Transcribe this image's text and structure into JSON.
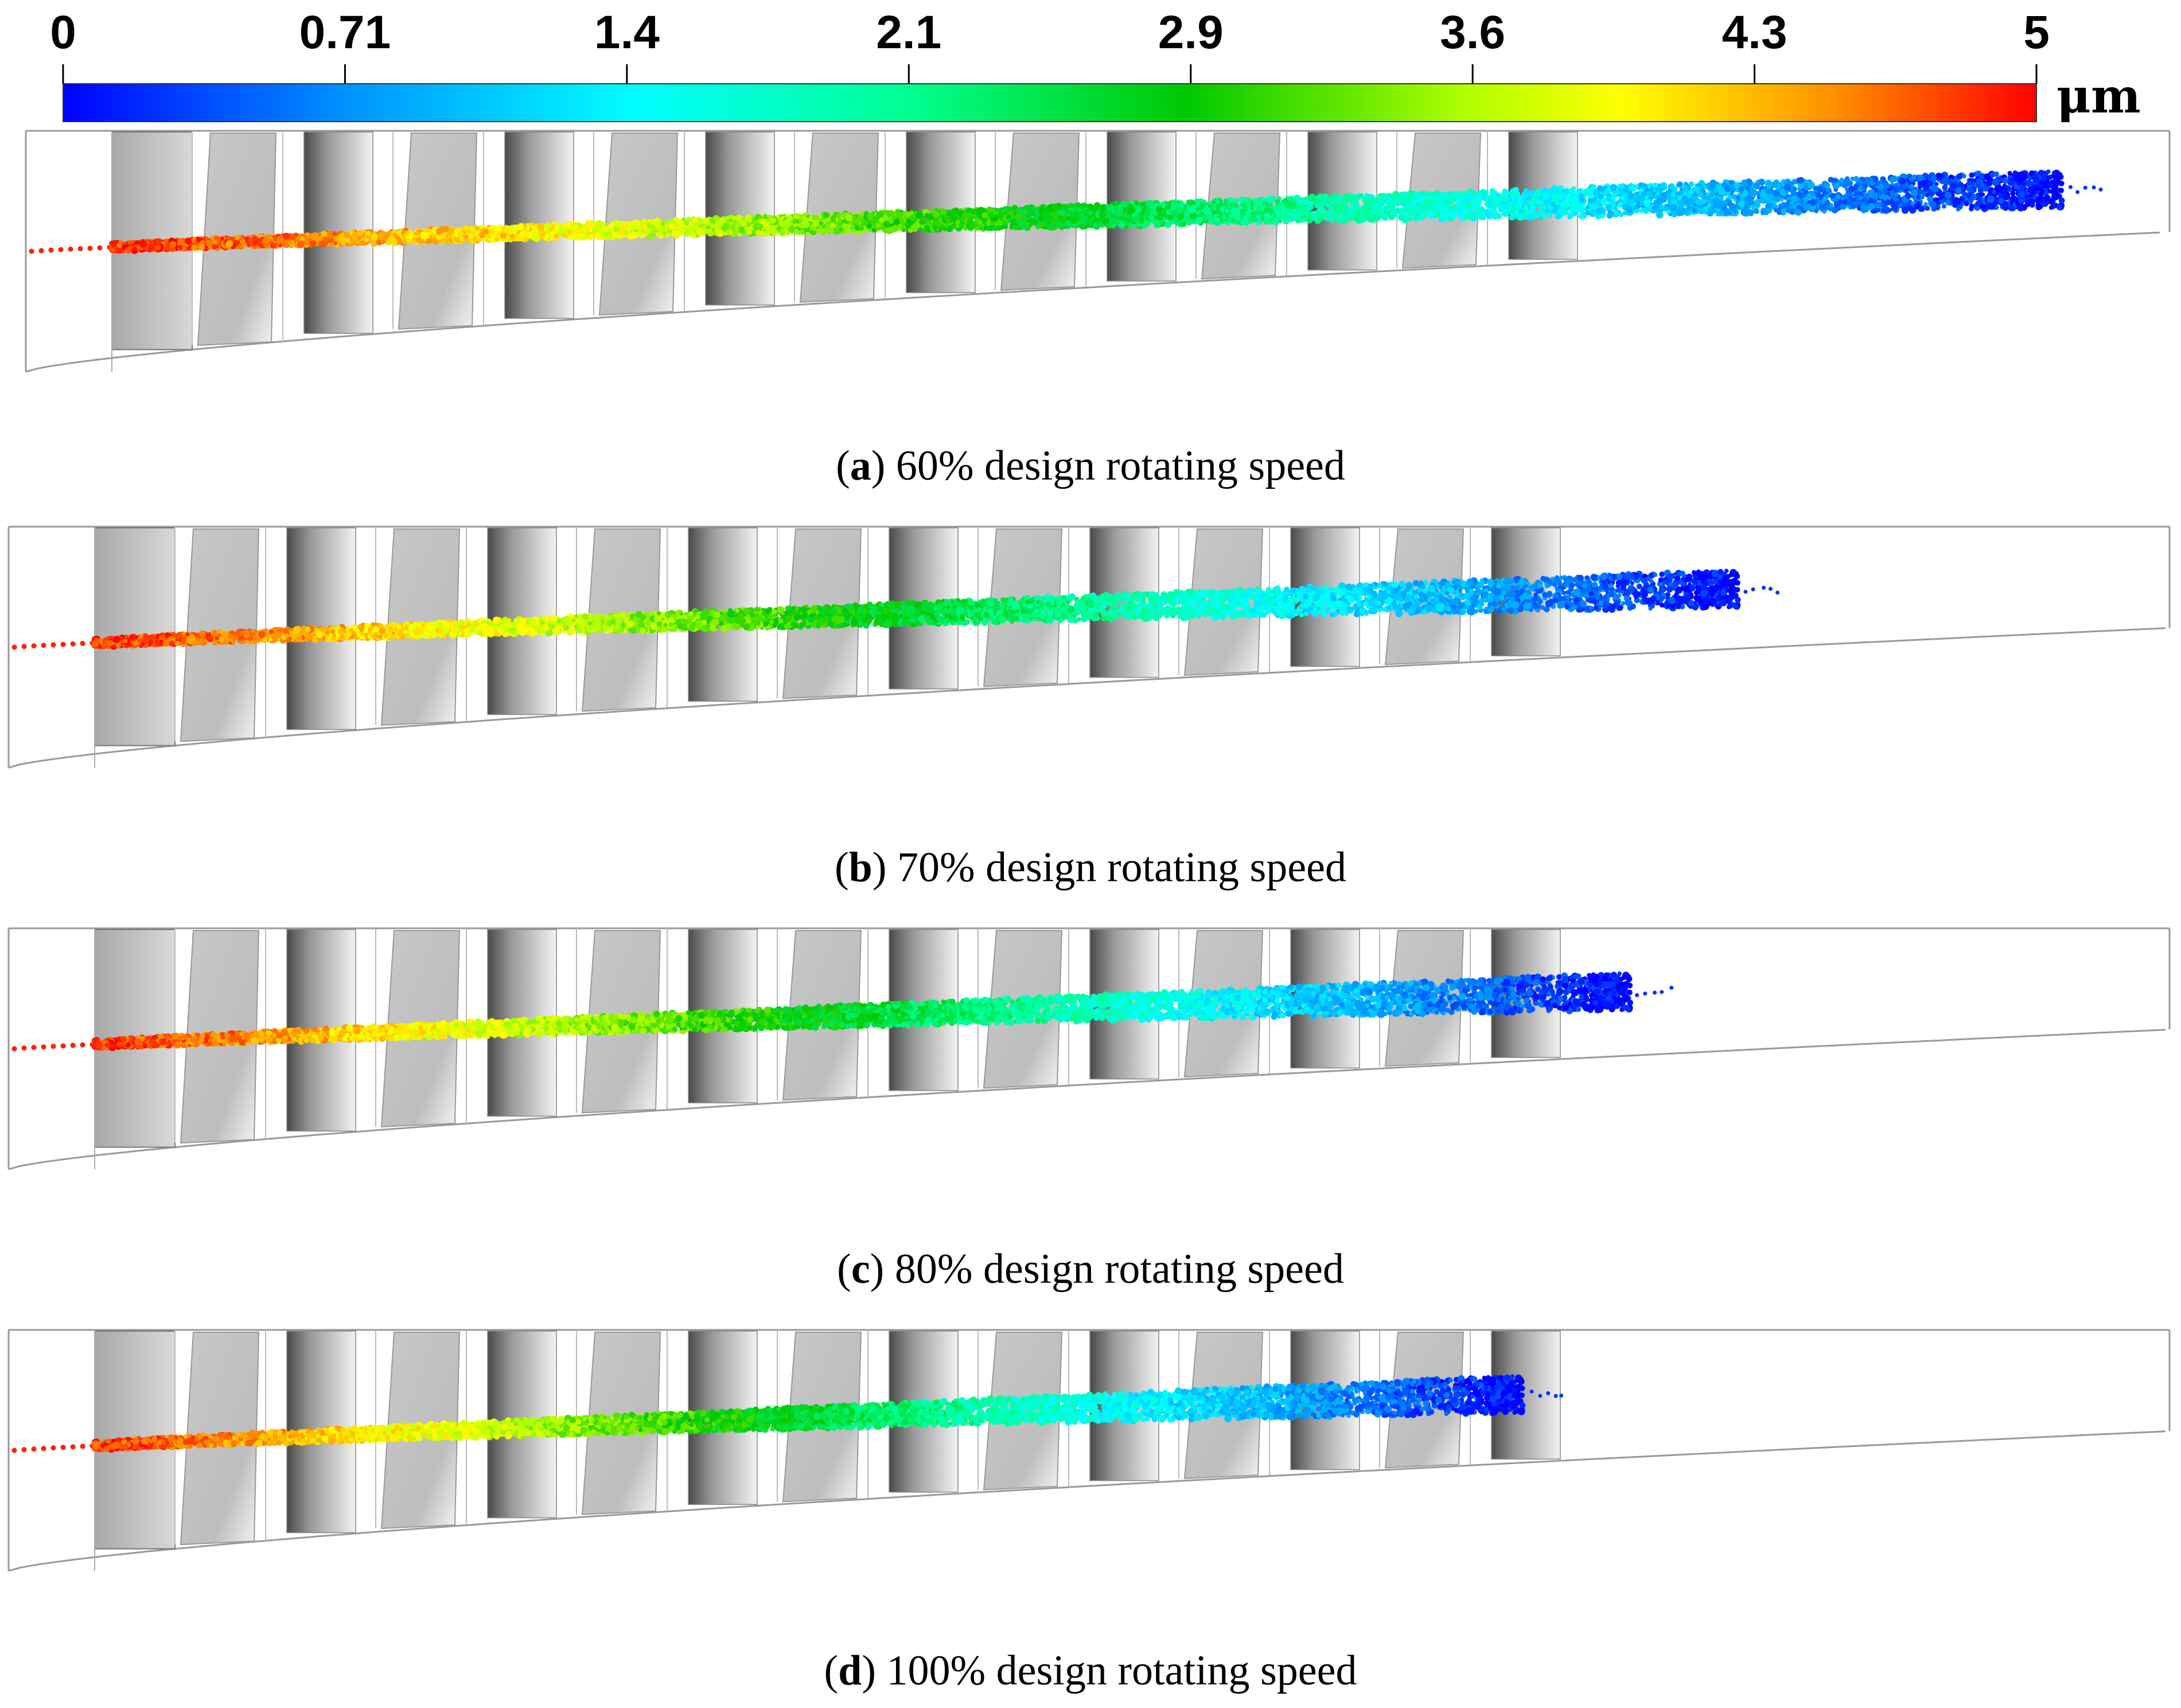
{
  "colorbar": {
    "ticks": [
      "0",
      "0.71",
      "1.4",
      "2.1",
      "2.9",
      "3.6",
      "4.3",
      "5"
    ],
    "unit": "μm",
    "min": 0,
    "max": 5,
    "colors": [
      "#0000ff",
      "#00bfff",
      "#00ffff",
      "#00ff80",
      "#00c000",
      "#80ff00",
      "#ffff00",
      "#ffa000",
      "#ff4000",
      "#ff0000"
    ]
  },
  "panels": [
    {
      "id": "a",
      "letter": "a",
      "caption": " 60% design rotating speed",
      "trajectory_end_fraction": 0.95
    },
    {
      "id": "b",
      "letter": "b",
      "caption": " 70% design rotating speed",
      "trajectory_end_fraction": 0.8
    },
    {
      "id": "c",
      "letter": "c",
      "caption": " 80% design rotating speed",
      "trajectory_end_fraction": 0.75
    },
    {
      "id": "d",
      "letter": "d",
      "caption": " 100% design rotating speed",
      "trajectory_end_fraction": 0.7
    }
  ],
  "styles": {
    "blade_dark": "#555555",
    "blade_light": "#f4f4f4",
    "outline": "#999999"
  }
}
